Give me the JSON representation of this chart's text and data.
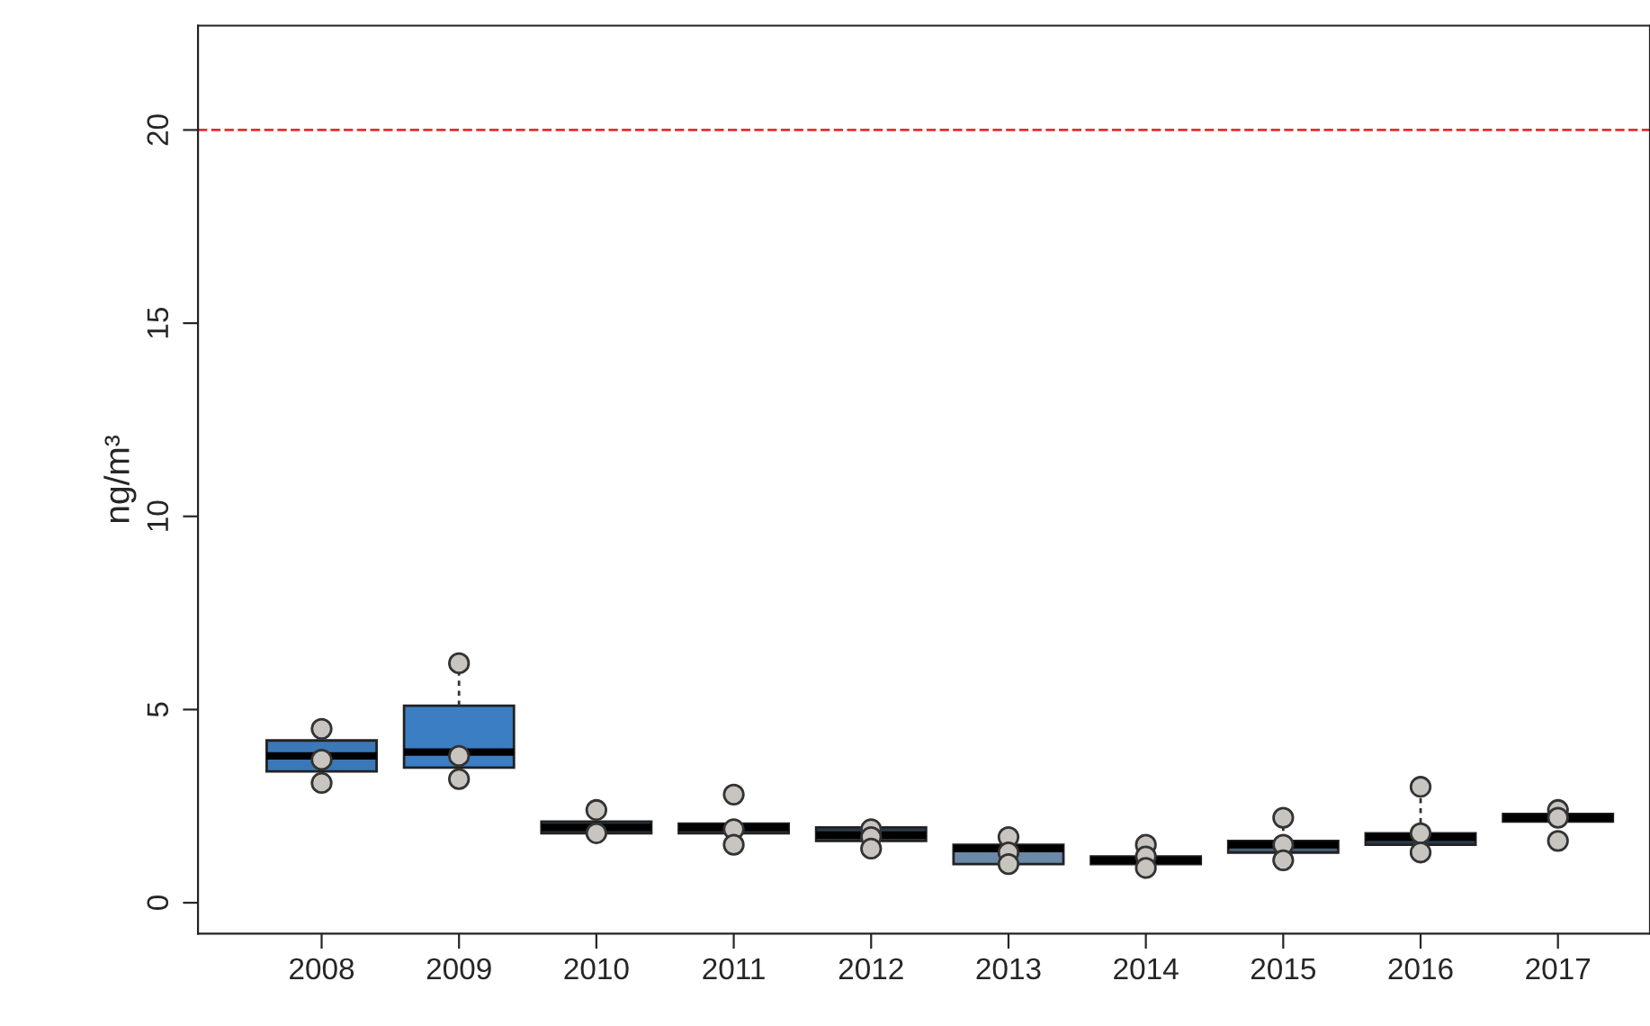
{
  "chart_data": {
    "type": "box",
    "ylabel": "ng/m³",
    "categories": [
      "2008",
      "2009",
      "2010",
      "2011",
      "2012",
      "2013",
      "2014",
      "2015",
      "2016",
      "2017"
    ],
    "ylim": [
      -0.8,
      22.7
    ],
    "yticks": [
      0,
      5,
      10,
      15,
      20
    ],
    "colors": [
      "#3b78b8",
      "#3b7ec4",
      "#2a3a4a",
      "#2a3a4a",
      "#2a3a4a",
      "#6a88a8",
      "#2a3a4a",
      "#4a6078",
      "#2a3a4a",
      "#2a3a4a"
    ],
    "boxes": [
      {
        "low": 3.4,
        "q1": 3.4,
        "median": 3.8,
        "q3": 4.2,
        "high": 4.2
      },
      {
        "low": 3.5,
        "q1": 3.5,
        "median": 3.9,
        "q3": 5.1,
        "high": 6.2
      },
      {
        "low": 1.8,
        "q1": 1.8,
        "median": 1.95,
        "q3": 2.1,
        "high": 2.1
      },
      {
        "low": 1.8,
        "q1": 1.8,
        "median": 1.95,
        "q3": 2.05,
        "high": 2.05
      },
      {
        "low": 1.6,
        "q1": 1.6,
        "median": 1.75,
        "q3": 1.95,
        "high": 1.95
      },
      {
        "low": 1.0,
        "q1": 1.0,
        "median": 1.4,
        "q3": 1.5,
        "high": 1.5
      },
      {
        "low": 1.0,
        "q1": 1.0,
        "median": 1.1,
        "q3": 1.2,
        "high": 1.2
      },
      {
        "low": 1.3,
        "q1": 1.3,
        "median": 1.5,
        "q3": 1.6,
        "high": 2.2
      },
      {
        "low": 1.5,
        "q1": 1.5,
        "median": 1.7,
        "q3": 1.8,
        "high": 3.0
      },
      {
        "low": 2.1,
        "q1": 2.1,
        "median": 2.2,
        "q3": 2.3,
        "high": 2.3
      }
    ],
    "series": [
      {
        "type": "scatter",
        "color": "#c8c4c0",
        "marker": "circle",
        "values": [
          4.5,
          6.2,
          2.4,
          2.8,
          1.9,
          1.7,
          1.5,
          2.2,
          3.0,
          2.4
        ]
      },
      {
        "type": "scatter",
        "color": "#c8c4c0",
        "marker": "circle",
        "values": [
          3.7,
          3.8,
          1.8,
          1.9,
          1.7,
          1.3,
          1.2,
          1.5,
          1.8,
          2.2
        ]
      },
      {
        "type": "scatter",
        "color": "#c8c4c0",
        "marker": "circle",
        "values": [
          3.1,
          3.2,
          null,
          1.5,
          1.4,
          1.0,
          0.9,
          1.1,
          1.3,
          1.6
        ]
      }
    ],
    "ref_lines": [
      {
        "axis": "y",
        "value": 20,
        "color": "#e03030",
        "line_style": "dashed"
      }
    ],
    "grid": false,
    "legend": false
  }
}
